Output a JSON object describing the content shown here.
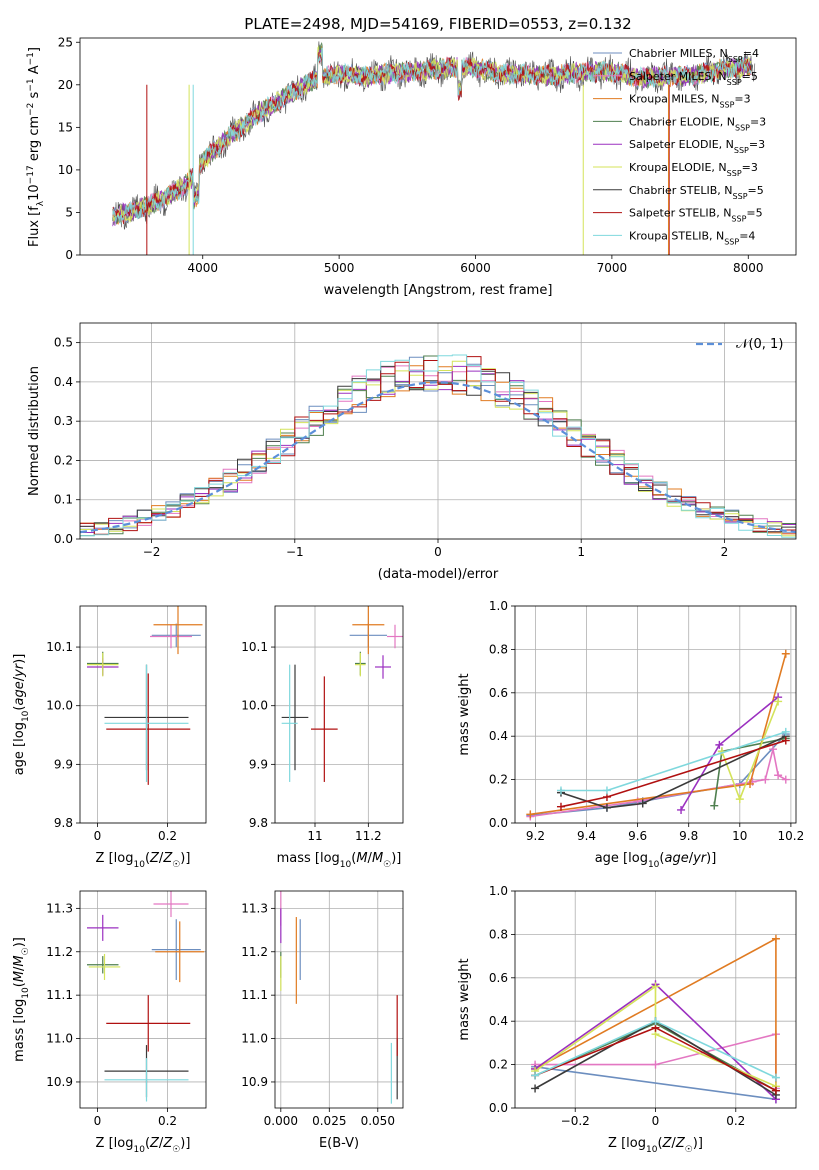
{
  "figure": {
    "title": "PLATE=2498, MJD=54169, FIBERID=0553, z=0.132"
  },
  "colors": {
    "Chabrier MILES": "#6c8ebf",
    "Salpeter MILES": "#e377c2",
    "Kroupa MILES": "#e07b22",
    "Chabrier ELODIE": "#4f7f4f",
    "Salpeter ELODIE": "#9b30c0",
    "Kroupa ELODIE": "#d4e35a",
    "Chabrier STELIB": "#3a3a3a",
    "Salpeter STELIB": "#b01010",
    "Kroupa STELIB": "#7fd8dd"
  },
  "chart_data": [
    {
      "id": "spectrum",
      "type": "line",
      "title": "PLATE=2498, MJD=54169, FIBERID=0553, z=0.132",
      "xlabel": "wavelength [Angstrom, rest frame]",
      "ylabel": "Flux [fλ10⁻¹⁷ erg cm⁻² s⁻¹ A⁻¹]",
      "xlim": [
        3100,
        8350
      ],
      "ylim": [
        0,
        25.5
      ],
      "xticks": [
        4000,
        5000,
        6000,
        7000,
        8000
      ],
      "yticks": [
        0,
        5,
        10,
        15,
        20,
        25
      ],
      "grid": false,
      "legend_position": "right",
      "legend": [
        "Chabrier MILES, N_SSP=4",
        "Salpeter MILES, N_SSP=5",
        "Kroupa MILES, N_SSP=3",
        "Chabrier ELODIE, N_SSP=3",
        "Salpeter ELODIE, N_SSP=3",
        "Kroupa ELODIE, N_SSP=3",
        "Chabrier STELIB, N_SSP=5",
        "Salpeter STELIB, N_SSP=5",
        "Kroupa STELIB, N_SSP=4"
      ],
      "continuum": {
        "x": [
          3340,
          3500,
          3700,
          3900,
          4000,
          4200,
          4400,
          4600,
          4800,
          5000,
          5200,
          5400,
          5600,
          5800,
          6000,
          6200,
          6400,
          6600,
          6800,
          7000,
          7200,
          7400,
          7600,
          7800,
          8050
        ],
        "y": [
          4.5,
          5.2,
          6.5,
          8.5,
          11,
          14,
          16.5,
          18.5,
          20.5,
          21.3,
          21.0,
          21.4,
          21.6,
          22.0,
          22.0,
          21.3,
          21.2,
          21.1,
          21.5,
          21.6,
          20.8,
          21.0,
          21.1,
          21.8,
          22.2
        ]
      }
    },
    {
      "id": "residuals",
      "type": "histogram",
      "xlabel": "(data-model)/error",
      "ylabel": "Normed distribution",
      "xlim": [
        -2.5,
        2.5
      ],
      "ylim": [
        0,
        0.55
      ],
      "xticks": [
        -2,
        -1,
        0,
        1,
        2
      ],
      "yticks": [
        0.0,
        0.1,
        0.2,
        0.3,
        0.4,
        0.5
      ],
      "grid": true,
      "legend": [
        "𝒩(0, 1)"
      ],
      "legend_position": "top-right",
      "bin_width": 0.1
    },
    {
      "id": "age-vs-Z",
      "type": "scatter",
      "xlabel": "Z [log10(Z/Z☉)]",
      "ylabel": "age  [log10(age/yr)]",
      "xlim": [
        -0.05,
        0.31
      ],
      "ylim": [
        9.8,
        10.17
      ],
      "xticks": [
        0.0,
        0.2
      ],
      "yticks": [
        9.8,
        9.9,
        10.0,
        10.1
      ],
      "grid": true,
      "points": [
        {
          "m": "Chabrier MILES",
          "x": 0.225,
          "y": 10.12,
          "xe": 0.07,
          "ye": 0.02
        },
        {
          "m": "Salpeter MILES",
          "x": 0.21,
          "y": 10.118,
          "xe": 0.06,
          "ye": 0.02
        },
        {
          "m": "Kroupa MILES",
          "x": 0.23,
          "y": 10.138,
          "xe": 0.07,
          "ye": 0.05
        },
        {
          "m": "Chabrier ELODIE",
          "x": 0.015,
          "y": 10.072,
          "xe": 0.045,
          "ye": 0.02
        },
        {
          "m": "Salpeter ELODIE",
          "x": 0.015,
          "y": 10.066,
          "xe": 0.045,
          "ye": 0.015
        },
        {
          "m": "Kroupa ELODIE",
          "x": 0.015,
          "y": 10.07,
          "xe": 0.045,
          "ye": 0.02
        },
        {
          "m": "Chabrier STELIB",
          "x": 0.14,
          "y": 9.98,
          "xe": 0.12,
          "ye": 0.09
        },
        {
          "m": "Salpeter STELIB",
          "x": 0.145,
          "y": 9.96,
          "xe": 0.12,
          "ye": 0.095
        },
        {
          "m": "Kroupa STELIB",
          "x": 0.14,
          "y": 9.97,
          "xe": 0.12,
          "ye": 0.1
        }
      ]
    },
    {
      "id": "age-vs-mass",
      "type": "scatter",
      "xlabel": "mass [log10(M/M☉)]",
      "ylabel": "",
      "xlim": [
        10.85,
        11.33
      ],
      "ylim": [
        9.8,
        10.17
      ],
      "xticks": [
        11.0,
        11.2
      ],
      "yticks": [
        9.8,
        9.9,
        10.0,
        10.1
      ],
      "grid": true,
      "points": [
        {
          "m": "Chabrier MILES",
          "x": 11.2,
          "y": 10.12,
          "xe": 0.07,
          "ye": 0.02
        },
        {
          "m": "Salpeter MILES",
          "x": 11.3,
          "y": 10.118,
          "xe": 0.03,
          "ye": 0.02
        },
        {
          "m": "Kroupa MILES",
          "x": 11.2,
          "y": 10.138,
          "xe": 0.06,
          "ye": 0.05
        },
        {
          "m": "Chabrier ELODIE",
          "x": 11.17,
          "y": 10.072,
          "xe": 0.02,
          "ye": 0.02
        },
        {
          "m": "Salpeter ELODIE",
          "x": 11.255,
          "y": 10.066,
          "xe": 0.03,
          "ye": 0.02
        },
        {
          "m": "Kroupa ELODIE",
          "x": 11.17,
          "y": 10.07,
          "xe": 0.02,
          "ye": 0.02
        },
        {
          "m": "Chabrier STELIB",
          "x": 10.925,
          "y": 9.98,
          "xe": 0.05,
          "ye": 0.09
        },
        {
          "m": "Salpeter STELIB",
          "x": 11.035,
          "y": 9.96,
          "xe": 0.05,
          "ye": 0.09
        },
        {
          "m": "Kroupa STELIB",
          "x": 10.905,
          "y": 9.97,
          "xe": 0.03,
          "ye": 0.1
        }
      ]
    },
    {
      "id": "mass-weight-vs-age",
      "type": "line",
      "xlabel": "age  [log10(age/yr)]",
      "ylabel": "mass weight",
      "xlim": [
        9.12,
        10.22
      ],
      "ylim": [
        0,
        1.0
      ],
      "xticks": [
        9.2,
        9.4,
        9.6,
        9.8,
        10.0,
        10.2
      ],
      "yticks": [
        0.0,
        0.2,
        0.4,
        0.6,
        0.8,
        1.0
      ],
      "grid": true,
      "series": [
        {
          "name": "Chabrier MILES",
          "x": [
            9.18,
            9.48,
            9.62,
            10.0,
            10.18
          ],
          "y": [
            0.035,
            0.07,
            0.1,
            0.18,
            0.41
          ]
        },
        {
          "name": "Salpeter MILES",
          "x": [
            9.18,
            9.6,
            10.05,
            10.1,
            10.13,
            10.15,
            10.18
          ],
          "y": [
            0.03,
            0.1,
            0.19,
            0.2,
            0.34,
            0.22,
            0.2
          ]
        },
        {
          "name": "Kroupa MILES",
          "x": [
            9.18,
            10.04,
            10.18
          ],
          "y": [
            0.04,
            0.18,
            0.78
          ]
        },
        {
          "name": "Chabrier ELODIE",
          "x": [
            9.9,
            9.93,
            10.18
          ],
          "y": [
            0.08,
            0.33,
            0.39
          ]
        },
        {
          "name": "Salpeter ELODIE",
          "x": [
            9.77,
            9.92,
            10.15
          ],
          "y": [
            0.06,
            0.36,
            0.58
          ]
        },
        {
          "name": "Kroupa ELODIE",
          "x": [
            9.93,
            10.0,
            10.15
          ],
          "y": [
            0.33,
            0.11,
            0.56
          ]
        },
        {
          "name": "Chabrier STELIB",
          "x": [
            9.3,
            9.48,
            9.62,
            10.18
          ],
          "y": [
            0.14,
            0.07,
            0.09,
            0.4
          ]
        },
        {
          "name": "Salpeter STELIB",
          "x": [
            9.3,
            9.48,
            10.18
          ],
          "y": [
            0.075,
            0.12,
            0.38
          ]
        },
        {
          "name": "Kroupa STELIB",
          "x": [
            9.3,
            9.48,
            10.18
          ],
          "y": [
            0.15,
            0.15,
            0.42
          ]
        }
      ]
    },
    {
      "id": "mass-vs-Z",
      "type": "scatter",
      "xlabel": "Z [log10(Z/Z☉)]",
      "ylabel": "mass [log10(M/M☉)]",
      "xlim": [
        -0.05,
        0.31
      ],
      "ylim": [
        10.84,
        11.34
      ],
      "xticks": [
        0.0,
        0.2
      ],
      "yticks": [
        10.9,
        11.0,
        11.1,
        11.2,
        11.3
      ],
      "grid": true,
      "points": [
        {
          "m": "Chabrier MILES",
          "x": 0.225,
          "y": 11.205,
          "xe": 0.07,
          "ye": 0.07
        },
        {
          "m": "Salpeter MILES",
          "x": 0.21,
          "y": 11.31,
          "xe": 0.05,
          "ye": 0.03
        },
        {
          "m": "Kroupa MILES",
          "x": 0.235,
          "y": 11.2,
          "xe": 0.07,
          "ye": 0.07
        },
        {
          "m": "Chabrier ELODIE",
          "x": 0.015,
          "y": 11.17,
          "xe": 0.045,
          "ye": 0.02
        },
        {
          "m": "Salpeter ELODIE",
          "x": 0.015,
          "y": 11.255,
          "xe": 0.045,
          "ye": 0.03
        },
        {
          "m": "Kroupa ELODIE",
          "x": 0.02,
          "y": 11.165,
          "xe": 0.045,
          "ye": 0.03
        },
        {
          "m": "Chabrier STELIB",
          "x": 0.14,
          "y": 10.925,
          "xe": 0.12,
          "ye": 0.06
        },
        {
          "m": "Salpeter STELIB",
          "x": 0.145,
          "y": 11.035,
          "xe": 0.12,
          "ye": 0.065
        },
        {
          "m": "Kroupa STELIB",
          "x": 0.14,
          "y": 10.905,
          "xe": 0.12,
          "ye": 0.05
        }
      ]
    },
    {
      "id": "mass-vs-ebv",
      "type": "scatter",
      "xlabel": "E(B-V)",
      "ylabel": "",
      "xlim": [
        -0.003,
        0.063
      ],
      "ylim": [
        10.84,
        11.34
      ],
      "xticks": [
        0.0,
        0.025,
        0.05
      ],
      "xticklabels": [
        "0.000",
        "0.025",
        "0.050"
      ],
      "yticks": [
        10.9,
        11.0,
        11.1,
        11.2,
        11.3
      ],
      "grid": true,
      "points": [
        {
          "m": "Chabrier MILES",
          "x": 0.01,
          "y": 11.205,
          "ye": 0.07
        },
        {
          "m": "Salpeter MILES",
          "x": 0.0,
          "y": 11.3,
          "ye": 0.04
        },
        {
          "m": "Kroupa MILES",
          "x": 0.008,
          "y": 11.18,
          "ye": 0.1
        },
        {
          "m": "Chabrier ELODIE",
          "x": 0.0,
          "y": 11.17,
          "ye": 0.03
        },
        {
          "m": "Salpeter ELODIE",
          "x": 0.0,
          "y": 11.26,
          "ye": 0.04
        },
        {
          "m": "Kroupa ELODIE",
          "x": 0.0,
          "y": 11.15,
          "ye": 0.04
        },
        {
          "m": "Chabrier STELIB",
          "x": 0.06,
          "y": 10.93,
          "ye": 0.07
        },
        {
          "m": "Salpeter STELIB",
          "x": 0.06,
          "y": 11.03,
          "ye": 0.07
        },
        {
          "m": "Kroupa STELIB",
          "x": 0.057,
          "y": 10.92,
          "ye": 0.07
        }
      ]
    },
    {
      "id": "mass-weight-vs-Z",
      "type": "line",
      "xlabel": "Z [log10(Z/Z☉)]",
      "ylabel": "mass weight",
      "xlim": [
        -0.35,
        0.35
      ],
      "ylim": [
        0,
        1.0
      ],
      "xticks": [
        -0.2,
        0.0,
        0.2
      ],
      "yticks": [
        0.0,
        0.2,
        0.4,
        0.6,
        0.8,
        1.0
      ],
      "grid": true,
      "series": [
        {
          "name": "Chabrier MILES",
          "x": [
            -0.3,
            0.3
          ],
          "y": [
            0.19,
            0.04
          ]
        },
        {
          "name": "Salpeter MILES",
          "x": [
            -0.3,
            0.0,
            0.3,
            0.3
          ],
          "y": [
            0.2,
            0.2,
            0.34,
            0.09
          ]
        },
        {
          "name": "Kroupa MILES",
          "x": [
            -0.3,
            0.3,
            0.3
          ],
          "y": [
            0.18,
            0.78,
            0.08
          ]
        },
        {
          "name": "Chabrier ELODIE",
          "x": [
            -0.3,
            0.0,
            0.3
          ],
          "y": [
            0.15,
            0.39,
            0.08
          ]
        },
        {
          "name": "Salpeter ELODIE",
          "x": [
            -0.3,
            0.0,
            0.3
          ],
          "y": [
            0.18,
            0.57,
            0.04
          ]
        },
        {
          "name": "Kroupa ELODIE",
          "x": [
            -0.3,
            0.0,
            0.0,
            0.3
          ],
          "y": [
            0.17,
            0.56,
            0.34,
            0.1
          ]
        },
        {
          "name": "Chabrier STELIB",
          "x": [
            -0.3,
            0.0,
            0.3
          ],
          "y": [
            0.09,
            0.4,
            0.06
          ]
        },
        {
          "name": "Salpeter STELIB",
          "x": [
            -0.3,
            0.0,
            0.3
          ],
          "y": [
            0.15,
            0.37,
            0.08
          ]
        },
        {
          "name": "Kroupa STELIB",
          "x": [
            -0.3,
            0.0,
            0.3
          ],
          "y": [
            0.15,
            0.4,
            0.14
          ]
        }
      ]
    }
  ]
}
